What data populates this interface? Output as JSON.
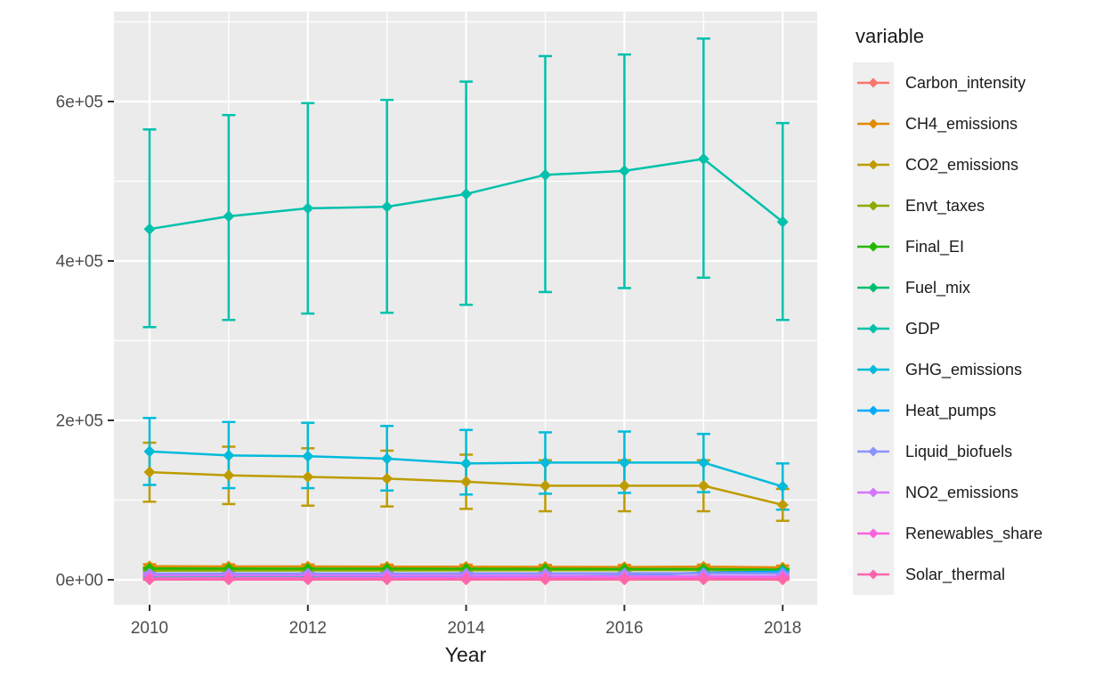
{
  "legend": {
    "title": "variable"
  },
  "colors": {
    "panel_bg": "#EBEBEB",
    "grid": "#FFFFFF",
    "axis_text": "#4D4D4D",
    "tick_mark": "#333333",
    "legend_key_bg": "#EFEFEF"
  },
  "chart_data": {
    "type": "line",
    "title": "",
    "xlabel": "Year",
    "ylabel": "",
    "grid": true,
    "legend_position": "right",
    "x": [
      2010,
      2011,
      2012,
      2013,
      2014,
      2015,
      2016,
      2017,
      2018
    ],
    "x_ticks": {
      "values": [
        2010,
        2012,
        2014,
        2016,
        2018
      ],
      "labels": [
        "2010",
        "2012",
        "2014",
        "2016",
        "2018"
      ]
    },
    "x_minor": [
      2011,
      2013,
      2015,
      2017
    ],
    "y_ticks": {
      "values": [
        0,
        200000,
        400000,
        600000
      ],
      "labels": [
        "0e+00",
        "2e+05",
        "4e+05",
        "6e+05"
      ]
    },
    "y_minor": [
      100000,
      300000,
      500000,
      700000
    ],
    "ylim": [
      -31000,
      713000
    ],
    "xlim": [
      2009.55,
      2018.45
    ],
    "series": [
      {
        "name": "Carbon_intensity",
        "color": "#F8766D",
        "values": [
          300,
          290,
          280,
          270,
          260,
          250,
          240,
          230,
          220
        ],
        "err_lo": [
          150,
          140,
          130,
          120,
          110,
          100,
          90,
          80,
          70
        ],
        "err_hi": [
          450,
          440,
          430,
          420,
          410,
          400,
          390,
          380,
          370
        ]
      },
      {
        "name": "CH4_emissions",
        "color": "#E18A00",
        "values": [
          17000,
          16800,
          16700,
          16500,
          16400,
          16200,
          16100,
          16500,
          15500
        ],
        "err_lo": [
          14500,
          14300,
          14200,
          14000,
          13900,
          13700,
          13600,
          14000,
          13200
        ],
        "err_hi": [
          19500,
          19300,
          19200,
          19000,
          18900,
          18700,
          18600,
          19000,
          17800
        ]
      },
      {
        "name": "CO2_emissions",
        "color": "#BE9C00",
        "values": [
          135000,
          131000,
          129000,
          127000,
          123000,
          118000,
          118000,
          118000,
          94000
        ],
        "err_lo": [
          98000,
          95000,
          93000,
          92000,
          89000,
          86000,
          86000,
          86000,
          74000
        ],
        "err_hi": [
          172000,
          167000,
          165000,
          162000,
          157000,
          150000,
          150000,
          150000,
          114000
        ]
      },
      {
        "name": "Envt_taxes",
        "color": "#8CAB00",
        "values": [
          11500,
          11600,
          11700,
          11800,
          11900,
          12000,
          12100,
          12200,
          11800
        ],
        "err_lo": [
          10000,
          10100,
          10200,
          10300,
          10400,
          10500,
          10600,
          10700,
          10300
        ],
        "err_hi": [
          13000,
          13100,
          13200,
          13300,
          13400,
          13500,
          13600,
          13700,
          13300
        ]
      },
      {
        "name": "Final_EI",
        "color": "#24B700",
        "values": [
          14200,
          14100,
          14000,
          13900,
          13800,
          13700,
          13600,
          13500,
          12800
        ],
        "err_lo": [
          13000,
          12900,
          12800,
          12700,
          12600,
          12500,
          12400,
          12300,
          11600
        ],
        "err_hi": [
          15400,
          15300,
          15200,
          15100,
          15000,
          14900,
          14800,
          14700,
          14000
        ]
      },
      {
        "name": "Fuel_mix",
        "color": "#00BE70",
        "values": [
          2600,
          2600,
          2600,
          2600,
          2600,
          2600,
          2600,
          2600,
          2600
        ],
        "err_lo": [
          2200,
          2200,
          2200,
          2200,
          2200,
          2200,
          2200,
          2200,
          2200
        ],
        "err_hi": [
          3000,
          3000,
          3000,
          3000,
          3000,
          3000,
          3000,
          3000,
          3000
        ]
      },
      {
        "name": "GDP",
        "color": "#00C1AB",
        "values": [
          440000,
          456000,
          466000,
          468000,
          484000,
          508000,
          513000,
          528000,
          449000
        ],
        "err_lo": [
          317000,
          326000,
          334000,
          335000,
          345000,
          361000,
          366000,
          379000,
          326000
        ],
        "err_hi": [
          565000,
          583000,
          598000,
          602000,
          625000,
          657000,
          659000,
          679000,
          573000
        ]
      },
      {
        "name": "GHG_emissions",
        "color": "#00BBDA",
        "values": [
          161000,
          156000,
          155000,
          152000,
          146000,
          147000,
          147000,
          147000,
          117000
        ],
        "err_lo": [
          119000,
          115000,
          115000,
          112000,
          107000,
          108000,
          109000,
          110000,
          88000
        ],
        "err_hi": [
          203000,
          198000,
          197000,
          193000,
          188000,
          185000,
          186000,
          183000,
          146000
        ]
      },
      {
        "name": "Heat_pumps",
        "color": "#00ACFC",
        "values": [
          1000,
          1400,
          1900,
          2400,
          3000,
          4200,
          5600,
          9000,
          10500
        ],
        "err_lo": [
          600,
          1000,
          1500,
          2000,
          2600,
          3800,
          5200,
          8600,
          10100
        ],
        "err_hi": [
          1400,
          1800,
          2300,
          2800,
          3400,
          4600,
          6000,
          9400,
          10900
        ]
      },
      {
        "name": "Liquid_biofuels",
        "color": "#8B93FF",
        "values": [
          7800,
          7900,
          8000,
          8000,
          8100,
          8100,
          8200,
          8200,
          8000
        ],
        "err_lo": [
          6900,
          7000,
          7100,
          7100,
          7200,
          7200,
          7300,
          7300,
          7100
        ],
        "err_hi": [
          8700,
          8800,
          8900,
          8900,
          9000,
          9000,
          9100,
          9100,
          8900
        ]
      },
      {
        "name": "NO2_emissions",
        "color": "#D575FE",
        "values": [
          5600,
          5500,
          5400,
          5300,
          5200,
          5100,
          5000,
          4900,
          4600
        ],
        "err_lo": [
          5000,
          4900,
          4800,
          4700,
          4600,
          4500,
          4400,
          4300,
          4000
        ],
        "err_hi": [
          6200,
          6100,
          6000,
          5900,
          5800,
          5700,
          5600,
          5500,
          5200
        ]
      },
      {
        "name": "Renewables_share",
        "color": "#F962DD",
        "values": [
          1800,
          1900,
          2000,
          2100,
          2200,
          2400,
          2500,
          2700,
          2900
        ],
        "err_lo": [
          1450,
          1550,
          1650,
          1750,
          1850,
          2050,
          2150,
          2350,
          2550
        ],
        "err_hi": [
          2150,
          2250,
          2350,
          2450,
          2550,
          2750,
          2850,
          3050,
          3250
        ]
      },
      {
        "name": "Solar_thermal",
        "color": "#FF65AC",
        "values": [
          400,
          450,
          500,
          550,
          600,
          650,
          700,
          750,
          800
        ],
        "err_lo": [
          200,
          250,
          300,
          350,
          400,
          450,
          500,
          550,
          600
        ],
        "err_hi": [
          600,
          650,
          700,
          750,
          800,
          850,
          900,
          950,
          1000
        ]
      }
    ]
  }
}
